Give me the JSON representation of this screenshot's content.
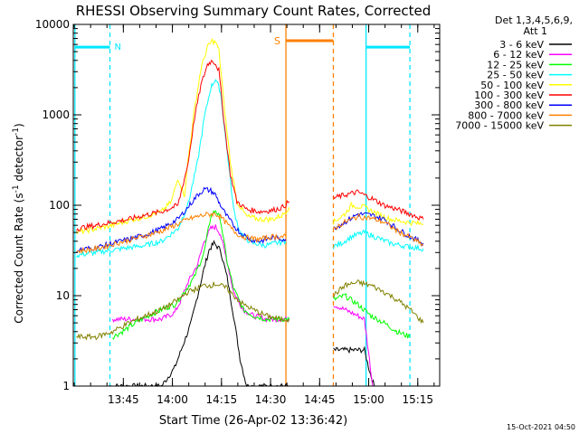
{
  "chart_data": {
    "type": "line",
    "title": "RHESSI Observing Summary Count Rates, Corrected",
    "xlabel": "Start Time (26-Apr-02 13:36:42)",
    "ylabel_parts": [
      "Corrected Count Rate (s",
      "-1",
      " detector",
      "-1",
      ")"
    ],
    "yscale": "log",
    "ylim": [
      1,
      10000
    ],
    "xlim_minutes": [
      -7,
      105
    ],
    "x_tick_labels": [
      "13:45",
      "14:00",
      "14:15",
      "14:30",
      "14:45",
      "15:00",
      "15:15"
    ],
    "x_tick_minutes": [
      8.3,
      23.3,
      38.3,
      53.3,
      68.3,
      83.3,
      98.3
    ],
    "y_tick_labels": [
      "1",
      "10",
      "100",
      "1000",
      "10000"
    ],
    "y_tick_values": [
      1,
      10,
      100,
      1000,
      10000
    ],
    "legend_header": [
      "Det 1,3,4,5,6,9,",
      "Att 1"
    ],
    "legend_position": "right",
    "footer_timestamp": "15-Oct-2021 04:50",
    "markers": {
      "night_label": "N",
      "saa_label": "S",
      "night_color": "#00e8ff",
      "saa_color": "#ff8000",
      "night_boundaries_minutes": [
        -6.5,
        4.2,
        82.5,
        95.9
      ],
      "saa_boundaries_minutes": [
        58.0,
        72.5
      ],
      "bar_level": 5600
    },
    "data_gaps_minutes": [
      [
        58.0,
        66.5
      ],
      [
        66.5,
        72.5
      ]
    ],
    "series": [
      {
        "name": "3 - 6 keV",
        "color": "#000000",
        "x": [
          4,
          16,
          20,
          24,
          26,
          29,
          31,
          33,
          34.5,
          36,
          38,
          40,
          42,
          44,
          46,
          50,
          56,
          59,
          72.5,
          76,
          82,
          83.5,
          85
        ],
        "y": [
          1,
          1,
          1,
          1.6,
          2.5,
          5,
          10,
          20,
          32,
          38,
          32,
          16,
          6,
          2,
          1,
          1,
          1,
          1,
          2.5,
          2.5,
          2.5,
          1.5,
          1
        ]
      },
      {
        "name": "6 - 12 keV",
        "color": "#ff00ff",
        "x": [
          5,
          10,
          16,
          20,
          24,
          26,
          28,
          31,
          33,
          35,
          36.5,
          38,
          40,
          42,
          45,
          48,
          52,
          56,
          59,
          72.5,
          76,
          80,
          82,
          83.5,
          84.5
        ],
        "y": [
          5.5,
          5.5,
          5.5,
          5.5,
          6.5,
          9,
          14,
          22,
          40,
          55,
          58,
          48,
          24,
          11,
          7,
          6,
          5.5,
          5.5,
          5.5,
          8,
          7,
          6,
          5.5,
          2,
          1
        ]
      },
      {
        "name": "12 - 25 keV",
        "color": "#00ff00",
        "x": [
          5,
          8,
          12,
          16,
          20,
          24,
          27,
          30,
          33,
          35,
          36.5,
          38,
          40,
          42,
          45,
          48,
          52,
          56,
          59,
          72.5,
          76,
          80,
          84,
          88,
          92,
          95.9
        ],
        "y": [
          3.5,
          4,
          5,
          6,
          7,
          8,
          11,
          16,
          30,
          75,
          88,
          70,
          24,
          12,
          7,
          6,
          5.5,
          5.5,
          5.5,
          9,
          10,
          8,
          6,
          5,
          4,
          3.5
        ]
      },
      {
        "name": "25 - 50 keV",
        "color": "#00ffff",
        "x": [
          -6,
          0,
          5,
          10,
          15,
          20,
          25,
          28,
          31,
          33,
          35,
          36.5,
          38,
          40,
          42,
          44,
          46,
          48,
          52,
          55,
          58,
          72.5,
          75,
          78,
          82,
          85,
          90,
          95,
          100
        ],
        "y": [
          28,
          30,
          32,
          34,
          36,
          40,
          55,
          100,
          300,
          900,
          2000,
          2500,
          1800,
          400,
          90,
          50,
          42,
          38,
          36,
          38,
          40,
          35,
          38,
          45,
          50,
          45,
          38,
          35,
          33
        ]
      },
      {
        "name": "50 - 100 keV",
        "color": "#ffff00",
        "x": [
          -6,
          0,
          5,
          10,
          15,
          20,
          23,
          25,
          27,
          28,
          30,
          32,
          34,
          35.5,
          36.5,
          37.5,
          39,
          41,
          43,
          46,
          50,
          54,
          57,
          59,
          72.5,
          76,
          78,
          82,
          86,
          90,
          95,
          100
        ],
        "y": [
          50,
          55,
          60,
          68,
          75,
          85,
          110,
          200,
          130,
          300,
          1100,
          3200,
          5600,
          6600,
          6300,
          5200,
          1400,
          300,
          110,
          75,
          70,
          70,
          78,
          95,
          65,
          80,
          100,
          95,
          80,
          70,
          65,
          62
        ]
      },
      {
        "name": "100 - 300 keV",
        "color": "#ff0000",
        "x": [
          -6,
          0,
          5,
          10,
          15,
          20,
          25,
          28,
          30,
          32,
          34,
          35.5,
          36.5,
          37.5,
          39,
          41,
          43,
          46,
          50,
          54,
          57,
          59,
          72.5,
          76,
          80,
          84,
          88,
          92,
          96,
          100
        ],
        "y": [
          55,
          60,
          65,
          70,
          78,
          85,
          100,
          280,
          900,
          2100,
          3600,
          4000,
          3700,
          3100,
          900,
          220,
          110,
          90,
          85,
          88,
          95,
          110,
          120,
          130,
          140,
          120,
          100,
          90,
          80,
          70
        ]
      },
      {
        "name": "300 - 800 keV",
        "color": "#0000ff",
        "x": [
          -6,
          0,
          5,
          10,
          15,
          20,
          25,
          28,
          31,
          33,
          35,
          36.5,
          38,
          40,
          42,
          44,
          47,
          50,
          54,
          58,
          72.5,
          76,
          80,
          84,
          88,
          92,
          96,
          100
        ],
        "y": [
          32,
          34,
          38,
          42,
          47,
          55,
          70,
          95,
          130,
          150,
          145,
          130,
          100,
          75,
          60,
          50,
          42,
          40,
          44,
          42,
          55,
          65,
          80,
          78,
          70,
          55,
          45,
          38
        ]
      },
      {
        "name": "800 - 7000 keV",
        "color": "#ff8000",
        "x": [
          -6,
          0,
          5,
          10,
          15,
          20,
          25,
          28,
          31,
          33,
          35,
          36.5,
          38,
          40,
          42,
          44,
          47,
          50,
          54,
          58,
          72.5,
          76,
          80,
          84,
          88,
          92,
          96,
          100
        ],
        "y": [
          31,
          33,
          37,
          41,
          46,
          52,
          62,
          70,
          75,
          78,
          80,
          80,
          75,
          62,
          52,
          46,
          43,
          42,
          45,
          45,
          55,
          65,
          75,
          72,
          65,
          52,
          44,
          36
        ]
      },
      {
        "name": "7000 - 15000 keV",
        "color": "#808000",
        "x": [
          -6,
          0,
          5,
          10,
          15,
          20,
          25,
          28,
          31,
          33,
          35,
          36.5,
          38,
          40,
          42,
          45,
          48,
          52,
          56,
          59,
          72.5,
          76,
          80,
          84,
          88,
          92,
          96,
          100
        ],
        "y": [
          3.5,
          3.5,
          4,
          5,
          6,
          7,
          9,
          11,
          12,
          13,
          13,
          13.5,
          13,
          12,
          10,
          8,
          7,
          6,
          5.5,
          5.5,
          10,
          13,
          14,
          13,
          11,
          9,
          7,
          5
        ]
      }
    ]
  }
}
